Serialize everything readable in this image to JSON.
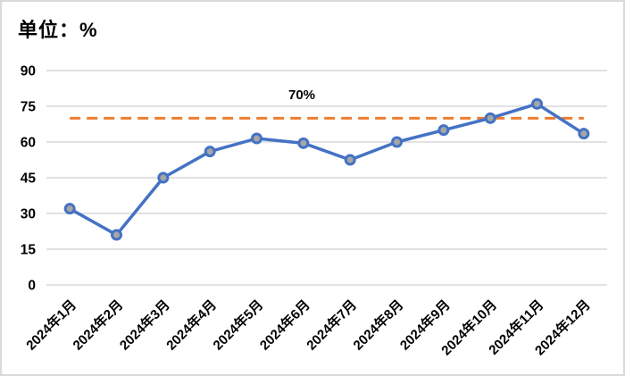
{
  "title": "单位：%",
  "chart_data": {
    "type": "line",
    "title": "单位：%",
    "categories": [
      "2024年1月",
      "2024年2月",
      "2024年3月",
      "2024年4月",
      "2024年5月",
      "2024年6月",
      "2024年7月",
      "2024年8月",
      "2024年9月",
      "2024年10月",
      "2024年11月",
      "2024年12月"
    ],
    "values": [
      32,
      21,
      45,
      56,
      61.5,
      59.5,
      52.5,
      60,
      65,
      70,
      76,
      63.5
    ],
    "reference_line": {
      "value": 70,
      "label": "70%",
      "color": "#ED7D31",
      "style": "dashed"
    },
    "y_ticks": [
      0,
      15,
      30,
      45,
      60,
      75,
      90
    ],
    "ylim": [
      0,
      90
    ],
    "xlabel": "",
    "ylabel": "",
    "grid": "horizontal",
    "legend": "none",
    "colors": {
      "line": "#4472C4",
      "marker_fill": "#A6A6A6",
      "marker_stroke": "#4472C4",
      "gridline": "#D9D9D9",
      "background": "#FFFFFF",
      "frame_border": "#D9D9D9",
      "text": "#000000"
    }
  }
}
